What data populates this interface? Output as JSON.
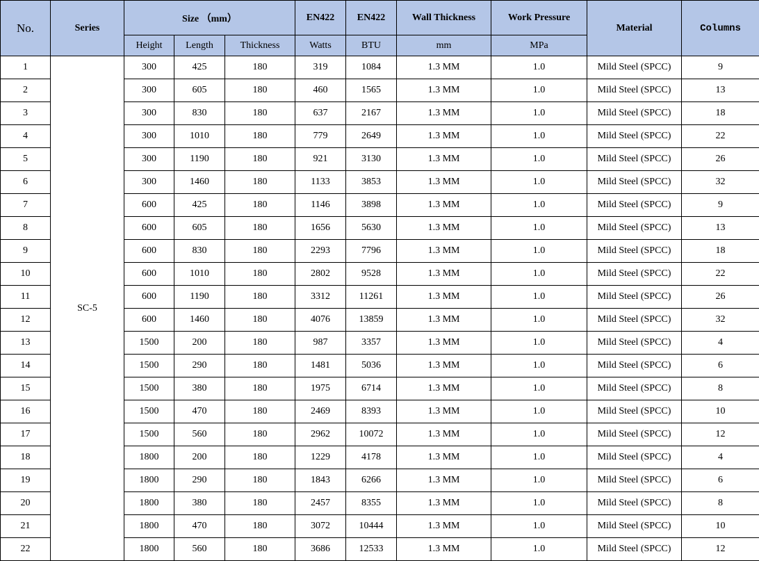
{
  "colors": {
    "header_bg": "#b4c6e7",
    "border": "#000000"
  },
  "headers": {
    "no": "No.",
    "series": "Series",
    "size": "Size （mm）",
    "en422_1": "EN422",
    "en422_2": "EN422",
    "wall": "Wall Thickness",
    "pressure": "Work Pressure",
    "material": "Material",
    "columns": "Columns",
    "height": "Height",
    "length": "Length",
    "thickness": "Thickness",
    "watts": "Watts",
    "btu": "BTU",
    "mm": "mm",
    "mpa": "MPa"
  },
  "series_value": "SC-5",
  "rows": [
    [
      "1",
      "300",
      "425",
      "180",
      "319",
      "1084",
      "1.3 MM",
      "1.0",
      "Mild Steel (SPCC)",
      "9"
    ],
    [
      "2",
      "300",
      "605",
      "180",
      "460",
      "1565",
      "1.3 MM",
      "1.0",
      "Mild Steel (SPCC)",
      "13"
    ],
    [
      "3",
      "300",
      "830",
      "180",
      "637",
      "2167",
      "1.3 MM",
      "1.0",
      "Mild Steel (SPCC)",
      "18"
    ],
    [
      "4",
      "300",
      "1010",
      "180",
      "779",
      "2649",
      "1.3 MM",
      "1.0",
      "Mild Steel (SPCC)",
      "22"
    ],
    [
      "5",
      "300",
      "1190",
      "180",
      "921",
      "3130",
      "1.3 MM",
      "1.0",
      "Mild Steel (SPCC)",
      "26"
    ],
    [
      "6",
      "300",
      "1460",
      "180",
      "1133",
      "3853",
      "1.3 MM",
      "1.0",
      "Mild Steel (SPCC)",
      "32"
    ],
    [
      "7",
      "600",
      "425",
      "180",
      "1146",
      "3898",
      "1.3 MM",
      "1.0",
      "Mild Steel (SPCC)",
      "9"
    ],
    [
      "8",
      "600",
      "605",
      "180",
      "1656",
      "5630",
      "1.3 MM",
      "1.0",
      "Mild Steel (SPCC)",
      "13"
    ],
    [
      "9",
      "600",
      "830",
      "180",
      "2293",
      "7796",
      "1.3 MM",
      "1.0",
      "Mild Steel (SPCC)",
      "18"
    ],
    [
      "10",
      "600",
      "1010",
      "180",
      "2802",
      "9528",
      "1.3 MM",
      "1.0",
      "Mild Steel (SPCC)",
      "22"
    ],
    [
      "11",
      "600",
      "1190",
      "180",
      "3312",
      "11261",
      "1.3 MM",
      "1.0",
      "Mild Steel (SPCC)",
      "26"
    ],
    [
      "12",
      "600",
      "1460",
      "180",
      "4076",
      "13859",
      "1.3 MM",
      "1.0",
      "Mild Steel (SPCC)",
      "32"
    ],
    [
      "13",
      "1500",
      "200",
      "180",
      "987",
      "3357",
      "1.3 MM",
      "1.0",
      "Mild Steel (SPCC)",
      "4"
    ],
    [
      "14",
      "1500",
      "290",
      "180",
      "1481",
      "5036",
      "1.3 MM",
      "1.0",
      "Mild Steel (SPCC)",
      "6"
    ],
    [
      "15",
      "1500",
      "380",
      "180",
      "1975",
      "6714",
      "1.3 MM",
      "1.0",
      "Mild Steel (SPCC)",
      "8"
    ],
    [
      "16",
      "1500",
      "470",
      "180",
      "2469",
      "8393",
      "1.3 MM",
      "1.0",
      "Mild Steel (SPCC)",
      "10"
    ],
    [
      "17",
      "1500",
      "560",
      "180",
      "2962",
      "10072",
      "1.3 MM",
      "1.0",
      "Mild Steel (SPCC)",
      "12"
    ],
    [
      "18",
      "1800",
      "200",
      "180",
      "1229",
      "4178",
      "1.3 MM",
      "1.0",
      "Mild Steel (SPCC)",
      "4"
    ],
    [
      "19",
      "1800",
      "290",
      "180",
      "1843",
      "6266",
      "1.3 MM",
      "1.0",
      "Mild Steel (SPCC)",
      "6"
    ],
    [
      "20",
      "1800",
      "380",
      "180",
      "2457",
      "8355",
      "1.3 MM",
      "1.0",
      "Mild Steel (SPCC)",
      "8"
    ],
    [
      "21",
      "1800",
      "470",
      "180",
      "3072",
      "10444",
      "1.3 MM",
      "1.0",
      "Mild Steel (SPCC)",
      "10"
    ],
    [
      "22",
      "1800",
      "560",
      "180",
      "3686",
      "12533",
      "1.3 MM",
      "1.0",
      "Mild Steel (SPCC)",
      "12"
    ]
  ]
}
